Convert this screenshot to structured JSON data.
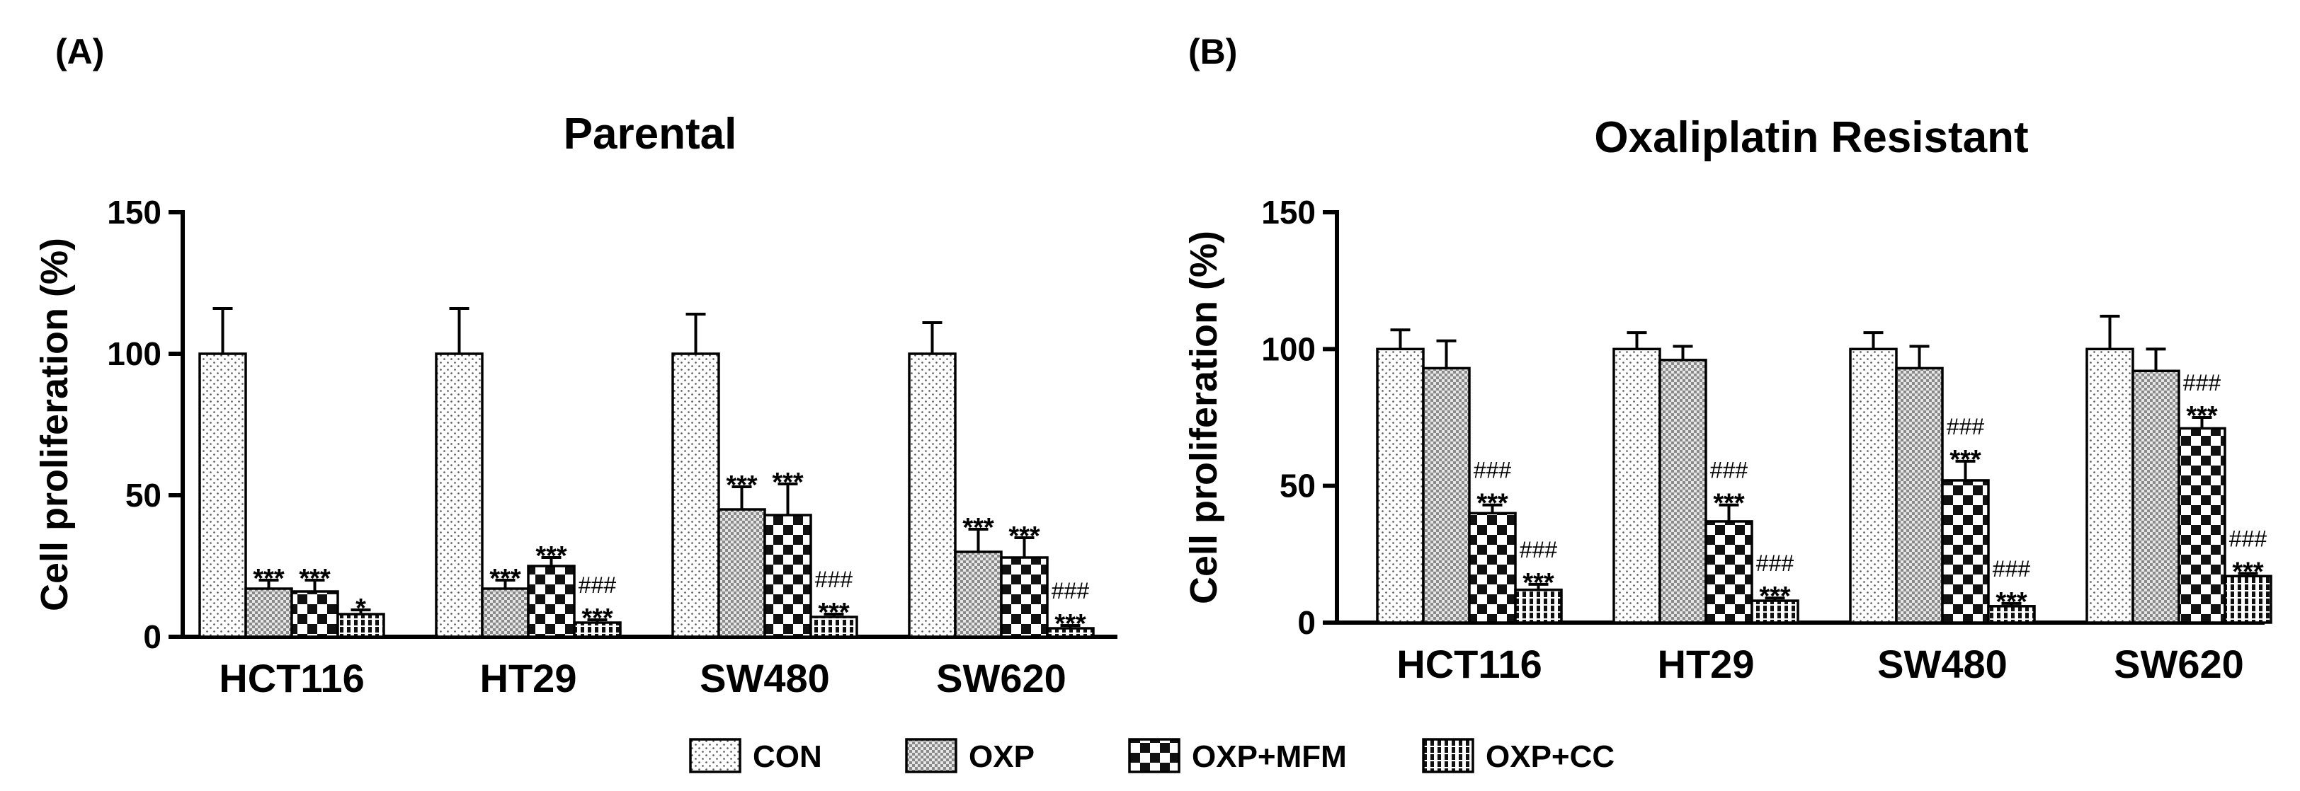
{
  "panel_labels": [
    "(A)",
    "(B)"
  ],
  "legend": {
    "items": [
      {
        "name": "CON",
        "pattern": "dots"
      },
      {
        "name": "OXP",
        "pattern": "grid"
      },
      {
        "name": "OXP+MFM",
        "pattern": "checker"
      },
      {
        "name": "OXP+CC",
        "pattern": "vlines"
      }
    ]
  },
  "chart_data": [
    {
      "type": "bar",
      "title": "Parental",
      "xlabel": "",
      "ylabel": "Cell proliferation (%)",
      "ylim": [
        0,
        150
      ],
      "yticks": [
        "0",
        "50",
        "100",
        "150"
      ],
      "categories": [
        "HCT116",
        "HT29",
        "SW480",
        "SW620"
      ],
      "series": [
        {
          "name": "CON",
          "values": [
            100,
            100,
            100,
            100
          ],
          "errors": [
            16,
            16,
            14,
            11
          ],
          "labels": [
            "",
            "",
            "",
            ""
          ]
        },
        {
          "name": "OXP",
          "values": [
            17,
            17,
            45,
            30
          ],
          "errors": [
            3,
            3,
            8,
            8
          ],
          "labels": [
            "***",
            "***",
            "***",
            "***"
          ]
        },
        {
          "name": "OXP+MFM",
          "values": [
            16,
            25,
            43,
            28
          ],
          "errors": [
            4,
            3,
            11,
            7
          ],
          "labels": [
            "***",
            "***",
            "***",
            "***"
          ]
        },
        {
          "name": "OXP+CC",
          "values": [
            8,
            5,
            7,
            3
          ],
          "errors": [
            1.5,
            1,
            1,
            1
          ],
          "labels": [
            "*",
            "###\n***",
            "###\n***",
            "###\n***"
          ]
        }
      ]
    },
    {
      "type": "bar",
      "title": "Oxaliplatin Resistant",
      "xlabel": "",
      "ylabel": "Cell proliferation (%)",
      "ylim": [
        0,
        150
      ],
      "yticks": [
        "0",
        "50",
        "100",
        "150"
      ],
      "categories": [
        "HCT116",
        "HT29",
        "SW480",
        "SW620"
      ],
      "series": [
        {
          "name": "CON",
          "values": [
            100,
            100,
            100,
            100
          ],
          "errors": [
            7,
            6,
            6,
            12
          ],
          "labels": [
            "",
            "",
            "",
            ""
          ]
        },
        {
          "name": "OXP",
          "values": [
            93,
            96,
            93,
            92
          ],
          "errors": [
            10,
            5,
            8,
            8
          ],
          "labels": [
            "",
            "",
            "",
            ""
          ]
        },
        {
          "name": "OXP+MFM",
          "values": [
            40,
            37,
            52,
            71
          ],
          "errors": [
            3,
            6,
            7,
            4
          ],
          "labels": [
            "###\n***",
            "###\n***",
            "###\n***",
            "###\n***"
          ]
        },
        {
          "name": "OXP+CC",
          "values": [
            12,
            8,
            6,
            17
          ],
          "errors": [
            2,
            1,
            1,
            1
          ],
          "labels": [
            "###\n***",
            "###\n***",
            "###\n***",
            "###\n***"
          ]
        }
      ]
    }
  ]
}
